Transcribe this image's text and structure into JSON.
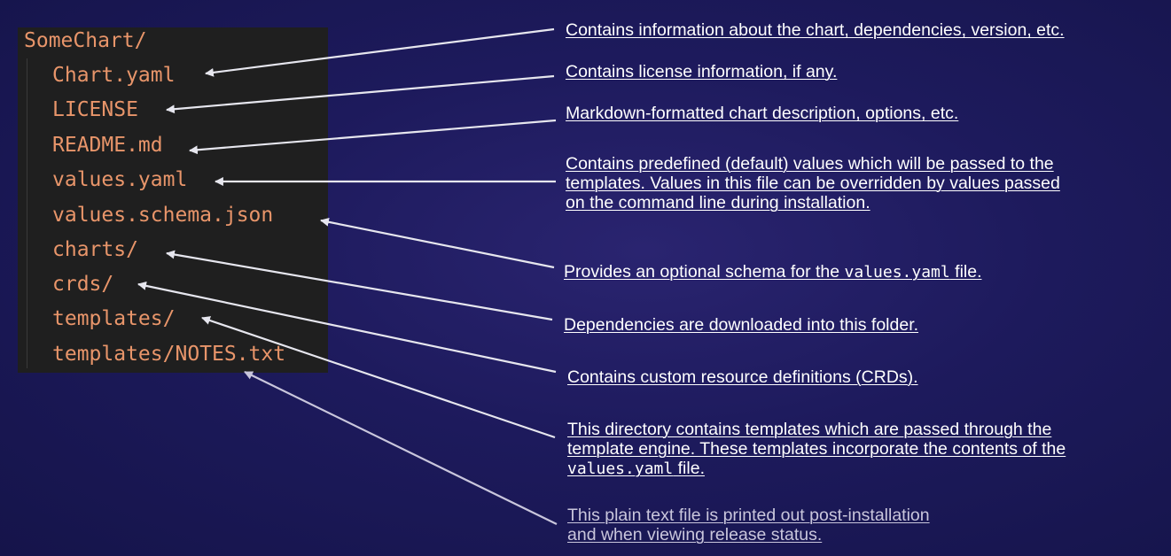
{
  "tree": {
    "root": "SomeChart/",
    "items": [
      "Chart.yaml",
      "LICENSE",
      "README.md",
      "values.yaml",
      "values.schema.json",
      "charts/",
      "crds/",
      "templates/",
      "templates/NOTES.txt"
    ]
  },
  "notes": {
    "chart_yaml": "Contains information about the chart, dependencies, version, etc.",
    "license": "Contains license information, if any.",
    "readme": "Markdown-formatted chart description, options, etc.",
    "values_line1": "Contains predefined (default) values which will be passed to the",
    "values_line2": "templates. Values in this file can be overridden by values passed",
    "values_line3": "on the command line during installation.",
    "schema_pre": "Provides an optional schema for the ",
    "schema_code": "values.yaml",
    "schema_post": " file.",
    "charts": "Dependencies are downloaded into this folder.",
    "crds": "Contains custom resource definitions (CRDs).",
    "templates_line1": "This directory contains templates which are passed through the",
    "templates_line2": "template engine. These templates incorporate the contents of the",
    "templates_code": "values.yaml",
    "templates_post": " file.",
    "notes_line1": "This plain text file is printed out post-installation",
    "notes_line2": "and when viewing release status."
  },
  "colors": {
    "background": "#1d1a5c",
    "tree_panel": "#1f1f1f",
    "file_text": "#e8956a",
    "note_text": "#ffffff",
    "dim_note_text": "#c9c6dc",
    "arrow": "#e6e6ee"
  }
}
